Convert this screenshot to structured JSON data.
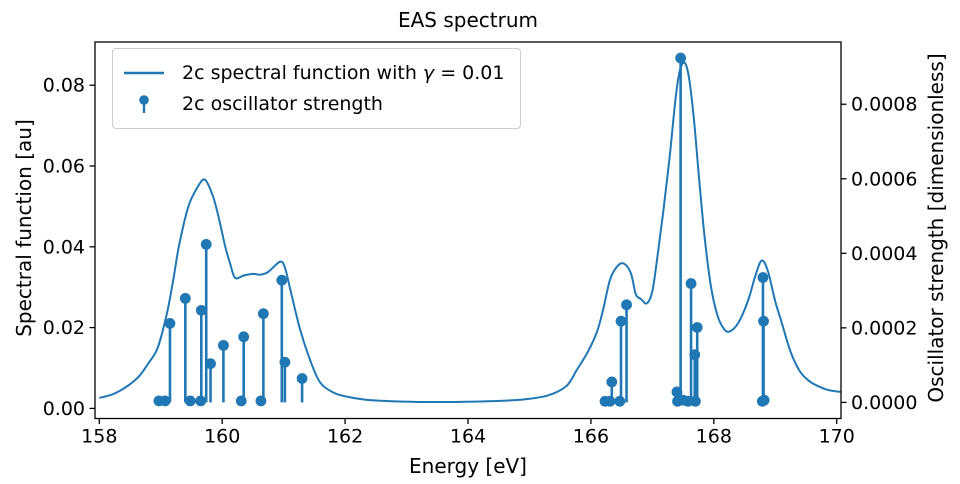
{
  "title": "EAS spectrum",
  "colors": {
    "series": "#1f77b4",
    "spine": "#000000",
    "text": "#000000",
    "legend_border": "#cccccc",
    "background": "#ffffff"
  },
  "legend": {
    "line_label_prefix": "2c spectral function with ",
    "line_label_gamma": "γ",
    "line_label_suffix": " = 0.01",
    "stem_label": "2c oscillator strength"
  },
  "chart_data": {
    "type": "line",
    "title": "EAS spectrum",
    "xlabel": "Energy [eV]",
    "ylabel_left": "Spectral function [au]",
    "ylabel_right": "Oscillator strength [dimensionless]",
    "legend_position": "upper left",
    "grid": false,
    "x_ticks": [
      "158",
      "160",
      "162",
      "164",
      "166",
      "168",
      "170"
    ],
    "left_ticks": [
      "0.00",
      "0.02",
      "0.04",
      "0.06",
      "0.08"
    ],
    "right_ticks": [
      "0.0000",
      "0.0002",
      "0.0004",
      "0.0006",
      "0.0008"
    ],
    "xlim": [
      157.93,
      170.07
    ],
    "ylim_left": [
      -0.0025,
      0.0907
    ],
    "ylim_right": [
      -4.32e-05,
      0.000967
    ],
    "series": [
      {
        "name": "2c spectral function with γ = 0.01",
        "type": "line",
        "axis": "left",
        "points": [
          [
            158.0,
            0.0026
          ],
          [
            158.2,
            0.0034
          ],
          [
            158.35,
            0.0045
          ],
          [
            158.5,
            0.006
          ],
          [
            158.65,
            0.008
          ],
          [
            158.8,
            0.0112
          ],
          [
            158.95,
            0.015
          ],
          [
            159.1,
            0.0235
          ],
          [
            159.2,
            0.0315
          ],
          [
            159.3,
            0.0405
          ],
          [
            159.45,
            0.05
          ],
          [
            159.6,
            0.0548
          ],
          [
            159.72,
            0.0566
          ],
          [
            159.85,
            0.0525
          ],
          [
            159.95,
            0.0468
          ],
          [
            160.05,
            0.04
          ],
          [
            160.13,
            0.0358
          ],
          [
            160.21,
            0.0323
          ],
          [
            160.35,
            0.0329
          ],
          [
            160.5,
            0.0333
          ],
          [
            160.62,
            0.0331
          ],
          [
            160.75,
            0.0338
          ],
          [
            160.94,
            0.0363
          ],
          [
            161.02,
            0.0349
          ],
          [
            161.11,
            0.0293
          ],
          [
            161.27,
            0.0194
          ],
          [
            161.43,
            0.012
          ],
          [
            161.59,
            0.0065
          ],
          [
            161.8,
            0.004
          ],
          [
            162.0,
            0.003
          ],
          [
            162.3,
            0.0022
          ],
          [
            162.7,
            0.0018
          ],
          [
            163.2,
            0.0016
          ],
          [
            163.8,
            0.0016
          ],
          [
            164.4,
            0.0018
          ],
          [
            164.9,
            0.0022
          ],
          [
            165.3,
            0.0032
          ],
          [
            165.6,
            0.0055
          ],
          [
            165.77,
            0.0095
          ],
          [
            165.95,
            0.014
          ],
          [
            166.1,
            0.019
          ],
          [
            166.2,
            0.0245
          ],
          [
            166.31,
            0.0318
          ],
          [
            166.42,
            0.035
          ],
          [
            166.53,
            0.0359
          ],
          [
            166.65,
            0.0335
          ],
          [
            166.73,
            0.0283
          ],
          [
            166.82,
            0.027
          ],
          [
            166.91,
            0.026
          ],
          [
            167.0,
            0.029
          ],
          [
            167.09,
            0.0384
          ],
          [
            167.18,
            0.049
          ],
          [
            167.28,
            0.062
          ],
          [
            167.38,
            0.077
          ],
          [
            167.45,
            0.0838
          ],
          [
            167.53,
            0.0855
          ],
          [
            167.6,
            0.0815
          ],
          [
            167.68,
            0.071
          ],
          [
            167.76,
            0.057
          ],
          [
            167.85,
            0.0425
          ],
          [
            167.95,
            0.0305
          ],
          [
            168.05,
            0.0235
          ],
          [
            168.15,
            0.02
          ],
          [
            168.25,
            0.019
          ],
          [
            168.4,
            0.0212
          ],
          [
            168.56,
            0.0268
          ],
          [
            168.68,
            0.033
          ],
          [
            168.78,
            0.0366
          ],
          [
            168.88,
            0.034
          ],
          [
            169.0,
            0.0265
          ],
          [
            169.1,
            0.0215
          ],
          [
            169.25,
            0.014
          ],
          [
            169.4,
            0.0092
          ],
          [
            169.55,
            0.0068
          ],
          [
            169.7,
            0.0055
          ],
          [
            169.85,
            0.0046
          ],
          [
            170.0,
            0.0042
          ],
          [
            170.07,
            0.0041
          ]
        ]
      },
      {
        "name": "2c oscillator strength",
        "type": "stem",
        "axis": "right",
        "points": [
          [
            158.97,
            4e-06
          ],
          [
            159.07,
            4e-06
          ],
          [
            159.15,
            0.000212
          ],
          [
            159.4,
            0.000279
          ],
          [
            159.48,
            4e-06
          ],
          [
            159.65,
            4e-06
          ],
          [
            159.66,
            0.000247
          ],
          [
            159.74,
            0.000424
          ],
          [
            159.81,
            0.000104
          ],
          [
            160.02,
            0.000153
          ],
          [
            160.31,
            4e-06
          ],
          [
            160.35,
            0.000176
          ],
          [
            160.63,
            4e-06
          ],
          [
            160.67,
            0.000238
          ],
          [
            160.97,
            0.000328
          ],
          [
            161.02,
            0.000108
          ],
          [
            161.3,
            6.4e-05
          ],
          [
            166.23,
            3e-06
          ],
          [
            166.31,
            3e-06
          ],
          [
            166.34,
            5.5e-05
          ],
          [
            166.47,
            3e-06
          ],
          [
            166.49,
            0.000218
          ],
          [
            166.58,
            0.000262
          ],
          [
            167.4,
            2.8e-05
          ],
          [
            167.41,
            3e-06
          ],
          [
            167.46,
            0.000924
          ],
          [
            167.5,
            6e-06
          ],
          [
            167.58,
            3e-06
          ],
          [
            167.63,
            0.000319
          ],
          [
            167.69,
            0.000128
          ],
          [
            167.7,
            3e-06
          ],
          [
            167.73,
            0.000201
          ],
          [
            168.79,
            3e-06
          ],
          [
            168.8,
            0.000335
          ],
          [
            168.81,
            0.000218
          ],
          [
            168.82,
            6e-06
          ]
        ]
      }
    ]
  }
}
